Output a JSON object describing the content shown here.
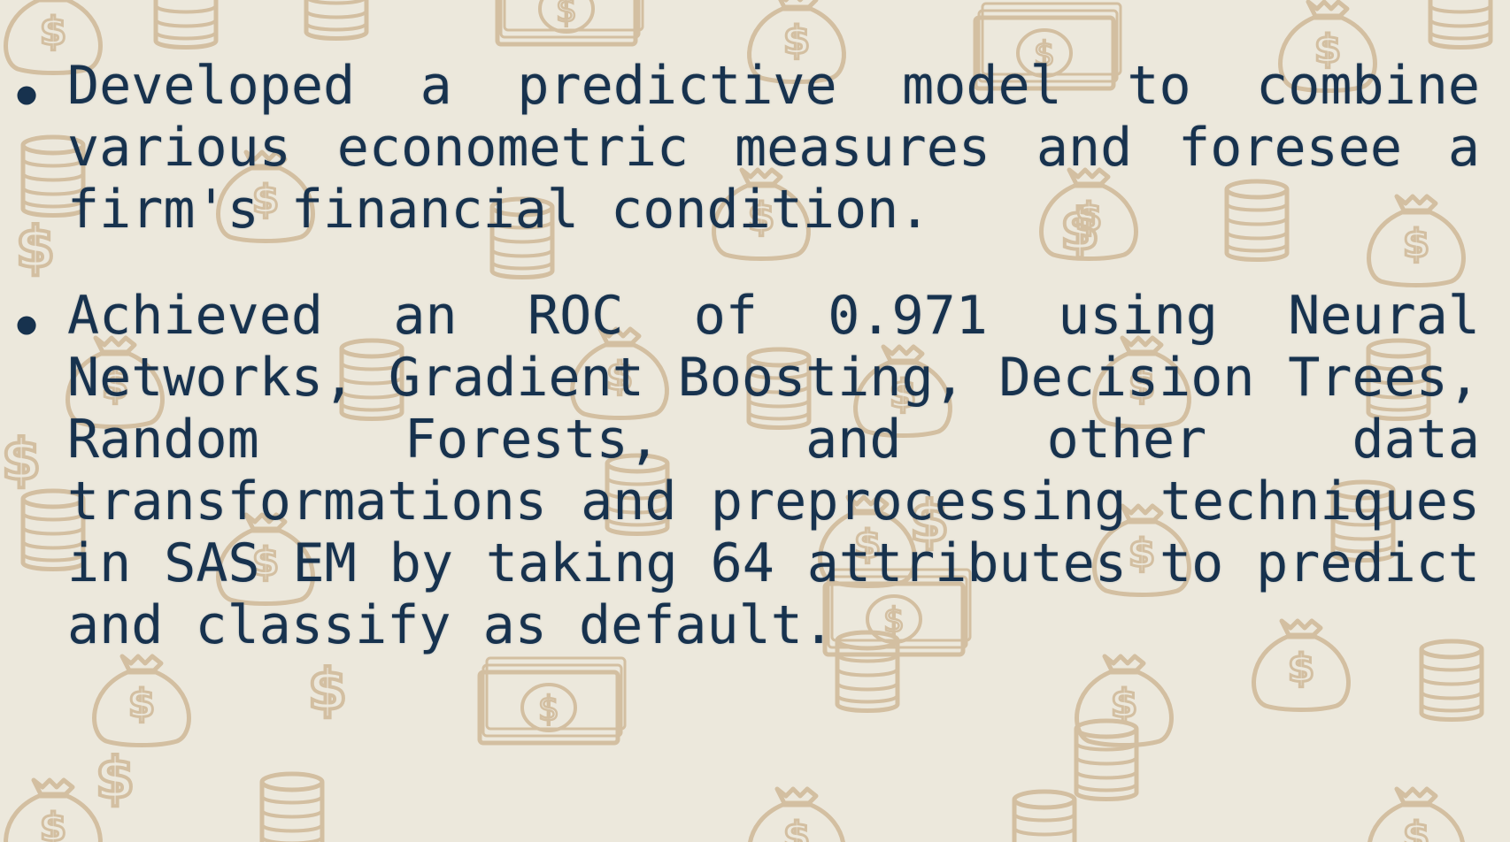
{
  "bullets": [
    {
      "marker": "•",
      "text": "Developed a predictive model to combine various econometric measures and foresee a firm's financial condition."
    },
    {
      "marker": "•",
      "text": "Achieved an ROC of 0.971 using Neural Networks, Gradient Boosting, Decision Trees, Random Forests, and other data transformations and preprocessing techniques in SAS EM by taking 64 attributes to predict and classify as default."
    }
  ],
  "colors": {
    "background": "#ece8dc",
    "pattern": "#c8ad87",
    "text": "#17324e"
  },
  "background_icons": [
    "money-bag-icon",
    "coin-stack-icon",
    "banknote-stack-icon",
    "dollar-sign-icon"
  ]
}
